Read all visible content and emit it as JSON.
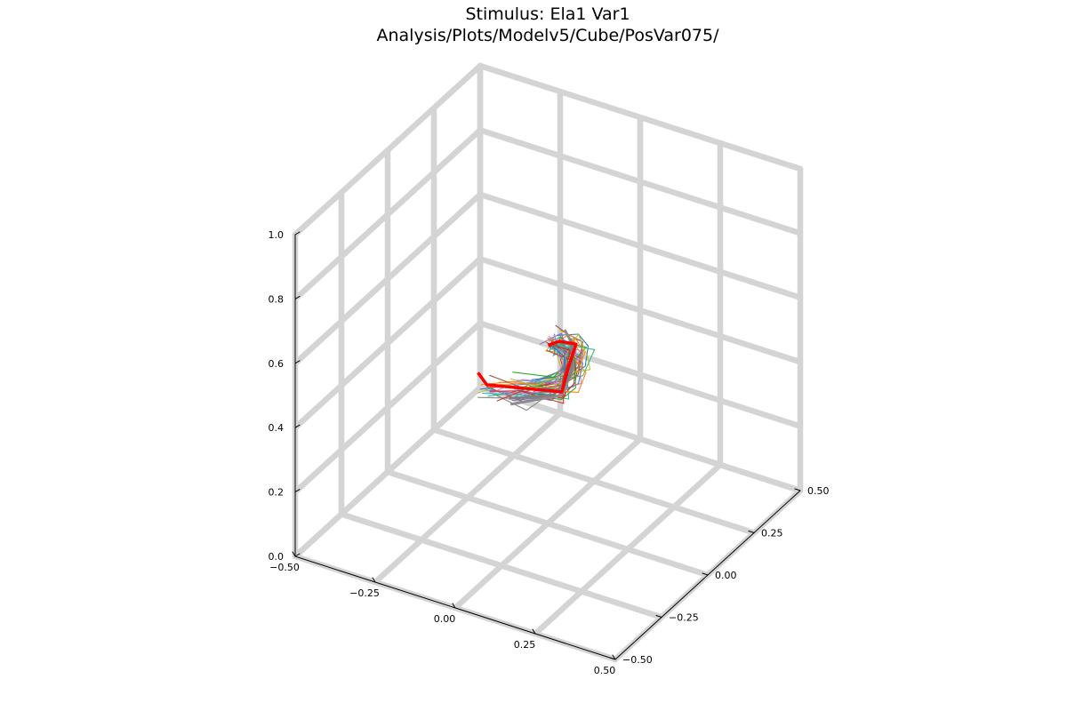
{
  "chart_data": {
    "type": "line",
    "title": "Stimulus: Ela1 Var1",
    "subtitle": "Analysis/Plots/Modelv5/Cube/PosVar075/",
    "projection": "3d",
    "grid": true,
    "legend": "none",
    "axes": {
      "x": {
        "label": "",
        "lim": [
          -0.5,
          0.5
        ],
        "ticks": [
          "−0.50",
          "−0.25",
          "0.00",
          "0.25",
          "0.50"
        ]
      },
      "y": {
        "label": "",
        "lim": [
          -0.5,
          0.5
        ],
        "ticks": [
          "−0.50",
          "−0.25",
          "0.00",
          "0.25",
          "0.50"
        ]
      },
      "z": {
        "label": "",
        "lim": [
          0.0,
          1.0
        ],
        "ticks": [
          "0.0",
          "0.2",
          "0.4",
          "0.6",
          "0.8",
          "1.0"
        ]
      }
    },
    "highlight_series": {
      "color": "#ff0000",
      "points": [
        [
          -0.16,
          -0.1,
          0.47
        ],
        [
          -0.15,
          -0.07,
          0.42
        ],
        [
          0.05,
          -0.01,
          0.43
        ],
        [
          0.08,
          -0.03,
          0.52
        ],
        [
          0.1,
          -0.02,
          0.6
        ],
        [
          0.07,
          -0.06,
          0.62
        ],
        [
          0.03,
          -0.05,
          0.59
        ]
      ]
    },
    "gray_series": [
      {
        "color": "#8c8c8c",
        "points": [
          [
            -0.07,
            -0.08,
            0.39
          ],
          [
            0.05,
            -0.01,
            0.42
          ],
          [
            0.09,
            -0.02,
            0.52
          ],
          [
            0.09,
            -0.02,
            0.55
          ],
          [
            0.09,
            -0.03,
            0.61
          ],
          [
            0.07,
            -0.03,
            0.64
          ]
        ]
      },
      {
        "color": "#7f7f7f",
        "points": [
          [
            -0.08,
            -0.07,
            0.4
          ],
          [
            0.03,
            -0.02,
            0.42
          ],
          [
            0.08,
            -0.02,
            0.49
          ],
          [
            0.1,
            -0.04,
            0.56
          ],
          [
            0.09,
            -0.03,
            0.62
          ]
        ]
      }
    ],
    "background_series_colors": [
      "#1f77b4",
      "#ff7f0e",
      "#2ca02c",
      "#d62728",
      "#9467bd",
      "#8c564b",
      "#e377c2",
      "#7f7f7f",
      "#bcbd22",
      "#17becf",
      "#6495ed",
      "#3cb371"
    ],
    "background_series_count": 40
  }
}
